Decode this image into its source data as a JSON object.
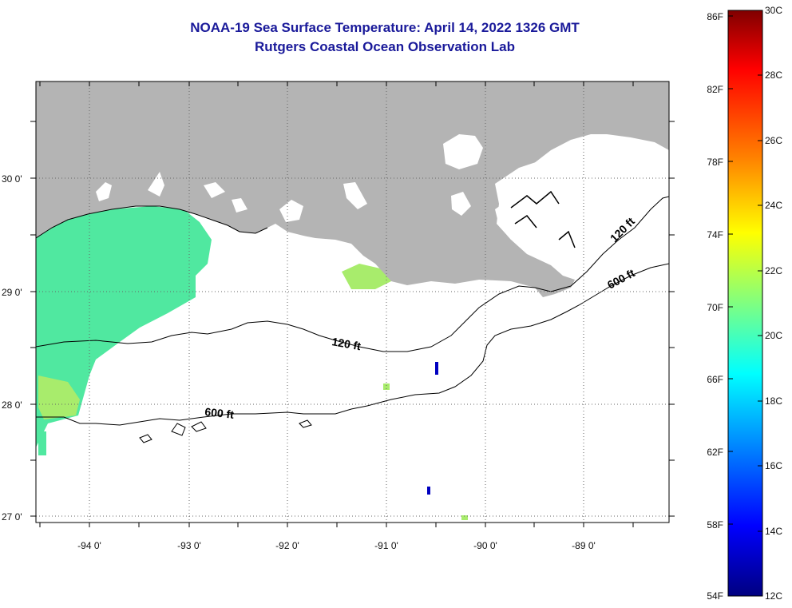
{
  "title_line1": "NOAA-19 Sea Surface Temperature:  April 14, 2022 1326 GMT",
  "title_line2": "Rutgers Coastal Ocean Observation Lab",
  "lon_labels": [
    "-94 0'",
    "-93 0'",
    "-92 0'",
    "-91 0'",
    "-90 0'",
    "-89 0'"
  ],
  "lat_labels": [
    "30 0'",
    "29 0'",
    "28 0'",
    "27 0'"
  ],
  "contours": {
    "c120_west": "120 ft",
    "c600_west": "600 ft",
    "c120_east": "120 ft",
    "c600_east": "600 ft"
  },
  "colorbar": {
    "f_labels": [
      "86F",
      "82F",
      "78F",
      "74F",
      "70F",
      "66F",
      "62F",
      "58F",
      "54F"
    ],
    "c_labels": [
      "30C",
      "28C",
      "26C",
      "24C",
      "22C",
      "20C",
      "18C",
      "16C",
      "14C",
      "12C"
    ],
    "colors": [
      "#800000",
      "#ff0000",
      "#ff8000",
      "#ffff00",
      "#80ff80",
      "#00ffff",
      "#0080ff",
      "#0000ff",
      "#000080"
    ]
  },
  "colors": {
    "land": "#b4b4b4",
    "water_sst": "#50e8a0",
    "title": "#1a1a9a"
  }
}
